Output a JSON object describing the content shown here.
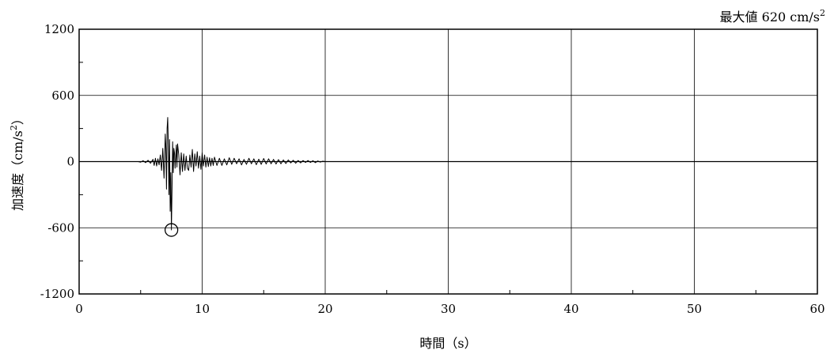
{
  "chart_data": {
    "type": "line",
    "annotation": {
      "prefix": "最大値 620 cm/s",
      "superscript": "2",
      "peak_time": 7.5,
      "peak_value": -620
    },
    "xlabel": "時間（s）",
    "ylabel_prefix": "加速度（cm/s",
    "ylabel_superscript": "2",
    "ylabel_suffix": "）",
    "xlim": [
      0,
      60
    ],
    "ylim": [
      -1200,
      1200
    ],
    "x_ticks": [
      "0",
      "10",
      "20",
      "30",
      "40",
      "50",
      "60"
    ],
    "y_ticks": [
      "-1200",
      "-600",
      "0",
      "600",
      "1200"
    ],
    "grid": true,
    "series": [
      {
        "x": [
          4.8,
          5.0,
          5.2,
          5.4,
          5.6,
          5.8,
          6.0,
          6.1,
          6.2,
          6.3,
          6.4,
          6.5,
          6.6,
          6.7,
          6.8,
          6.9,
          7.0,
          7.05,
          7.1,
          7.15,
          7.2,
          7.25,
          7.3,
          7.35,
          7.4,
          7.45,
          7.5,
          7.55,
          7.6,
          7.65,
          7.7,
          7.75,
          7.8,
          7.85,
          7.9,
          7.95,
          8.0,
          8.1,
          8.2,
          8.3,
          8.4,
          8.5,
          8.6,
          8.7,
          8.8,
          8.9,
          9.0,
          9.1,
          9.2,
          9.3,
          9.4,
          9.5,
          9.6,
          9.7,
          9.8,
          9.9,
          10.0,
          10.1,
          10.2,
          10.3,
          10.4,
          10.5,
          10.6,
          10.7,
          10.8,
          10.9,
          11.0,
          11.2,
          11.4,
          11.6,
          11.8,
          12.0,
          12.2,
          12.4,
          12.6,
          12.8,
          13.0,
          13.2,
          13.4,
          13.6,
          13.8,
          14.0,
          14.2,
          14.4,
          14.6,
          14.8,
          15.0,
          15.2,
          15.4,
          15.6,
          15.8,
          16.0,
          16.2,
          16.4,
          16.6,
          16.8,
          17.0,
          17.2,
          17.4,
          17.6,
          17.8,
          18.0,
          18.2,
          18.4,
          18.6,
          18.8,
          19.0,
          19.2,
          19.4,
          19.6,
          19.8,
          20.0
        ],
        "y": [
          0,
          -5,
          8,
          -10,
          12,
          -15,
          20,
          -35,
          30,
          -40,
          25,
          -30,
          60,
          -80,
          120,
          -150,
          250,
          120,
          -250,
          300,
          400,
          150,
          -300,
          200,
          -450,
          -100,
          -620,
          -250,
          180,
          -100,
          120,
          80,
          -60,
          40,
          150,
          -50,
          160,
          60,
          -120,
          80,
          -90,
          70,
          -80,
          50,
          -60,
          -80,
          60,
          -50,
          110,
          -90,
          70,
          -40,
          90,
          -60,
          50,
          -70,
          80,
          -40,
          60,
          -50,
          40,
          -45,
          35,
          -40,
          30,
          -35,
          40,
          -35,
          30,
          -35,
          25,
          -30,
          35,
          -25,
          30,
          -20,
          25,
          -30,
          20,
          -25,
          30,
          -20,
          25,
          -28,
          22,
          -25,
          28,
          -22,
          25,
          -20,
          20,
          -22,
          18,
          -20,
          15,
          -18,
          15,
          -12,
          12,
          -15,
          10,
          -12,
          10,
          -8,
          10,
          -8,
          8,
          -10,
          6,
          -5,
          4,
          0
        ]
      }
    ]
  }
}
